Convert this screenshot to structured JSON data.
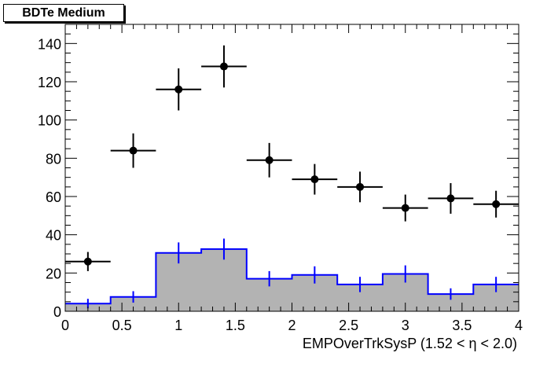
{
  "title": "BDTe Medium",
  "chart_data": {
    "type": "histogram",
    "title": "BDTe Medium",
    "xlabel": "EMPOverTrkSysP (1.52 <   η < 2.0)",
    "ylabel": "",
    "xlim": [
      0,
      4
    ],
    "ylim": [
      0,
      150
    ],
    "x_ticks": [
      "0",
      "0.5",
      "1",
      "1.5",
      "2",
      "2.5",
      "3",
      "3.5",
      "4"
    ],
    "y_ticks": [
      "0",
      "20",
      "40",
      "60",
      "80",
      "100",
      "120",
      "140"
    ],
    "bin_edges": [
      0,
      0.4,
      0.8,
      1.2,
      1.6,
      2.0,
      2.4,
      2.8,
      3.2,
      3.6,
      4.0
    ],
    "series": [
      {
        "kind": "points",
        "color": "#000000",
        "values": [
          26,
          84,
          116,
          128,
          79,
          69,
          65,
          54,
          59,
          56
        ],
        "errors": [
          5,
          9,
          11,
          11,
          9,
          8,
          8,
          7,
          8,
          7
        ]
      },
      {
        "kind": "filled-histogram",
        "line_color": "#0000ff",
        "fill_color": "#b3b3b3",
        "values": [
          4,
          7.5,
          30.5,
          32.5,
          17,
          19,
          14,
          19.5,
          9,
          14
        ],
        "errors": [
          2.5,
          3,
          5.5,
          5.5,
          4,
          4.5,
          4,
          4.5,
          3,
          4
        ]
      }
    ]
  }
}
